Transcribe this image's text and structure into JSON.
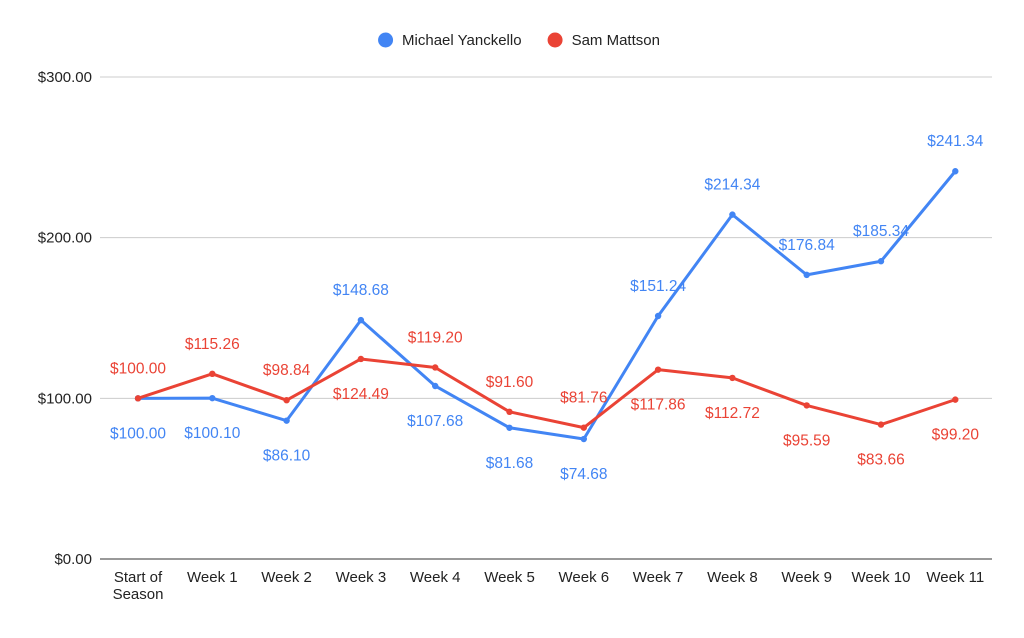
{
  "chart_data": {
    "type": "line",
    "categories": [
      [
        "Start of",
        "Season"
      ],
      [
        "Week 1"
      ],
      [
        "Week 2"
      ],
      [
        "Week 3"
      ],
      [
        "Week 4"
      ],
      [
        "Week 5"
      ],
      [
        "Week 6"
      ],
      [
        "Week 7"
      ],
      [
        "Week 8"
      ],
      [
        "Week 9"
      ],
      [
        "Week 10"
      ],
      [
        "Week 11"
      ]
    ],
    "series": [
      {
        "name": "Michael Yanckello",
        "color": "#4285F4",
        "values": [
          100.0,
          100.1,
          86.1,
          148.68,
          107.68,
          81.68,
          74.68,
          151.24,
          214.34,
          176.84,
          185.34,
          241.34
        ],
        "labels": [
          "$100.00",
          "$100.10",
          "$86.10",
          "$148.68",
          "$107.68",
          "$81.68",
          "$74.68",
          "$151.24",
          "$214.34",
          "$176.84",
          "$185.34",
          "$241.34"
        ]
      },
      {
        "name": "Sam Mattson",
        "color": "#EA4335",
        "values": [
          100.0,
          115.26,
          98.84,
          124.49,
          119.2,
          91.6,
          81.76,
          117.86,
          112.72,
          95.59,
          83.66,
          99.2
        ],
        "labels": [
          "$100.00",
          "$115.26",
          "$98.84",
          "$124.49",
          "$119.20",
          "$91.60",
          "$81.76",
          "$117.86",
          "$112.72",
          "$95.59",
          "$83.66",
          "$99.20"
        ]
      }
    ],
    "ylim": [
      0,
      300
    ],
    "y_ticks": [
      0,
      100,
      200,
      300
    ],
    "y_tick_labels": [
      "$0.00",
      "$100.00",
      "$200.00",
      "$300.00"
    ],
    "grid": true,
    "legend_position": "top-center",
    "title": "",
    "xlabel": "",
    "ylabel": ""
  }
}
